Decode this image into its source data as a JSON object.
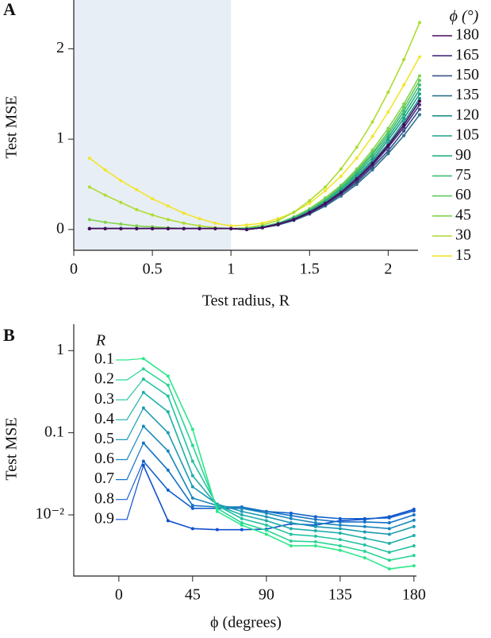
{
  "chart_data": [
    {
      "type": "line",
      "panel": "A",
      "ylabel": "Test MSE",
      "xlabel": "Test radius, R",
      "legend_title": "ϕ (°)",
      "highlight_xlim": [
        0,
        1
      ],
      "xlim": [
        0,
        2.2
      ],
      "ylim": [
        -0.23,
        2.54
      ],
      "xticks": [
        0,
        0.5,
        1,
        1.5,
        2
      ],
      "yticks": [
        0,
        1,
        2
      ],
      "x": [
        0.1,
        0.2,
        0.3,
        0.4,
        0.5,
        0.6,
        0.7,
        0.8,
        0.9,
        1.0,
        1.1,
        1.2,
        1.3,
        1.4,
        1.5,
        1.6,
        1.7,
        1.8,
        1.9,
        2.0,
        2.1,
        2.2
      ],
      "series": [
        {
          "name": "180",
          "color": "#46085c",
          "values": [
            0.01,
            0.01,
            0.01,
            0.01,
            0.01,
            0.01,
            0.01,
            0.01,
            0.01,
            0.01,
            0.0,
            0.02,
            0.06,
            0.11,
            0.19,
            0.29,
            0.41,
            0.56,
            0.73,
            0.93,
            1.16,
            1.42
          ]
        },
        {
          "name": "165",
          "color": "#472d7b",
          "values": [
            0.01,
            0.01,
            0.01,
            0.01,
            0.01,
            0.01,
            0.01,
            0.01,
            0.01,
            0.01,
            0.0,
            0.02,
            0.06,
            0.11,
            0.18,
            0.28,
            0.4,
            0.54,
            0.71,
            0.91,
            1.13,
            1.38
          ]
        },
        {
          "name": "150",
          "color": "#3b528b",
          "values": [
            0.01,
            0.01,
            0.01,
            0.01,
            0.01,
            0.01,
            0.01,
            0.01,
            0.01,
            0.01,
            0.0,
            0.02,
            0.05,
            0.11,
            0.18,
            0.27,
            0.39,
            0.52,
            0.69,
            0.87,
            1.09,
            1.33
          ]
        },
        {
          "name": "135",
          "color": "#2c728e",
          "values": [
            0.01,
            0.01,
            0.01,
            0.01,
            0.01,
            0.01,
            0.01,
            0.01,
            0.01,
            0.01,
            0.0,
            0.02,
            0.05,
            0.1,
            0.17,
            0.26,
            0.37,
            0.5,
            0.66,
            0.84,
            1.04,
            1.27
          ]
        },
        {
          "name": "120",
          "color": "#21918c",
          "values": [
            0.01,
            0.01,
            0.01,
            0.01,
            0.01,
            0.01,
            0.01,
            0.01,
            0.01,
            0.01,
            0.0,
            0.02,
            0.06,
            0.12,
            0.19,
            0.29,
            0.42,
            0.57,
            0.75,
            0.95,
            1.19,
            1.45
          ]
        },
        {
          "name": "105",
          "color": "#1fa088",
          "values": [
            0.01,
            0.01,
            0.01,
            0.01,
            0.01,
            0.01,
            0.01,
            0.01,
            0.01,
            0.01,
            0.0,
            0.02,
            0.06,
            0.12,
            0.2,
            0.3,
            0.43,
            0.59,
            0.77,
            0.99,
            1.23,
            1.5
          ]
        },
        {
          "name": "90",
          "color": "#28ae80",
          "values": [
            0.01,
            0.01,
            0.01,
            0.01,
            0.01,
            0.01,
            0.01,
            0.01,
            0.01,
            0.01,
            0.01,
            0.03,
            0.06,
            0.12,
            0.21,
            0.31,
            0.45,
            0.61,
            0.8,
            1.02,
            1.27,
            1.55
          ]
        },
        {
          "name": "75",
          "color": "#3fbc73",
          "values": [
            0.01,
            0.01,
            0.01,
            0.01,
            0.01,
            0.01,
            0.01,
            0.01,
            0.01,
            0.01,
            0.01,
            0.03,
            0.07,
            0.13,
            0.21,
            0.32,
            0.46,
            0.63,
            0.83,
            1.05,
            1.31,
            1.6
          ]
        },
        {
          "name": "60",
          "color": "#5ec962",
          "values": [
            0.01,
            0.01,
            0.01,
            0.01,
            0.01,
            0.01,
            0.01,
            0.01,
            0.01,
            0.01,
            0.01,
            0.03,
            0.07,
            0.13,
            0.22,
            0.33,
            0.48,
            0.65,
            0.85,
            1.08,
            1.35,
            1.65
          ]
        },
        {
          "name": "45",
          "color": "#84d44b",
          "values": [
            0.11,
            0.08,
            0.06,
            0.04,
            0.03,
            0.02,
            0.01,
            0.01,
            0.01,
            0.01,
            0.01,
            0.03,
            0.07,
            0.14,
            0.23,
            0.35,
            0.49,
            0.67,
            0.88,
            1.12,
            1.39,
            1.7
          ]
        },
        {
          "name": "30",
          "color": "#addc30",
          "values": [
            0.47,
            0.38,
            0.3,
            0.22,
            0.16,
            0.11,
            0.07,
            0.04,
            0.02,
            0.01,
            0.02,
            0.05,
            0.1,
            0.19,
            0.32,
            0.47,
            0.67,
            0.91,
            1.19,
            1.52,
            1.88,
            2.29
          ]
        },
        {
          "name": "15",
          "color": "#f2e52a",
          "values": [
            0.79,
            0.66,
            0.54,
            0.44,
            0.34,
            0.26,
            0.18,
            0.12,
            0.07,
            0.04,
            0.05,
            0.07,
            0.12,
            0.19,
            0.29,
            0.43,
            0.59,
            0.79,
            1.03,
            1.3,
            1.6,
            1.91
          ]
        }
      ]
    },
    {
      "type": "line",
      "panel": "B",
      "ylabel": "Test MSE",
      "xlabel": "ϕ (degrees)",
      "legend_title": "R",
      "log_y": true,
      "xlim": [
        -27.5,
        182.5
      ],
      "ylim": [
        0.0018,
        2.1
      ],
      "xticks": [
        0,
        45,
        90,
        135,
        180
      ],
      "yticks": [
        1,
        0.1,
        {
          "value": 0.01,
          "label": "10⁻²"
        }
      ],
      "x": [
        15,
        30,
        45,
        60,
        75,
        90,
        105,
        120,
        135,
        150,
        165,
        180
      ],
      "series": [
        {
          "name": "0.1",
          "color": "#2de88a",
          "values": [
            0.8,
            0.49,
            0.11,
            0.011,
            0.0075,
            0.0058,
            0.0042,
            0.0042,
            0.0037,
            0.003,
            0.0022,
            0.0024
          ]
        },
        {
          "name": "0.2",
          "color": "#28d595",
          "values": [
            0.6,
            0.38,
            0.07,
            0.012,
            0.008,
            0.0065,
            0.0048,
            0.0047,
            0.0042,
            0.0036,
            0.0028,
            0.0032
          ]
        },
        {
          "name": "0.3",
          "color": "#23c29f",
          "values": [
            0.45,
            0.28,
            0.045,
            0.013,
            0.009,
            0.0075,
            0.0058,
            0.0055,
            0.005,
            0.0043,
            0.0035,
            0.0042
          ]
        },
        {
          "name": "0.4",
          "color": "#1faea9",
          "values": [
            0.31,
            0.18,
            0.03,
            0.013,
            0.01,
            0.0085,
            0.0068,
            0.0064,
            0.006,
            0.0052,
            0.0045,
            0.0056
          ]
        },
        {
          "name": "0.5",
          "color": "#1b9ab3",
          "values": [
            0.2,
            0.1,
            0.022,
            0.0135,
            0.011,
            0.0095,
            0.008,
            0.0072,
            0.0068,
            0.0062,
            0.0058,
            0.0072
          ]
        },
        {
          "name": "0.6",
          "color": "#1886bd",
          "values": [
            0.12,
            0.06,
            0.016,
            0.013,
            0.012,
            0.0105,
            0.009,
            0.008,
            0.0075,
            0.0072,
            0.0068,
            0.0086
          ]
        },
        {
          "name": "0.7",
          "color": "#1572c5",
          "values": [
            0.075,
            0.035,
            0.013,
            0.0125,
            0.0125,
            0.011,
            0.0098,
            0.0088,
            0.0082,
            0.0082,
            0.008,
            0.01
          ]
        },
        {
          "name": "0.8",
          "color": "#1261cb",
          "values": [
            0.045,
            0.02,
            0.012,
            0.012,
            0.012,
            0.011,
            0.0105,
            0.0095,
            0.009,
            0.009,
            0.0092,
            0.0112
          ]
        },
        {
          "name": "0.9",
          "color": "#0f4fd0",
          "values": [
            0.04,
            0.0085,
            0.0068,
            0.0066,
            0.0066,
            0.0067,
            0.0078,
            0.0075,
            0.0085,
            0.0088,
            0.0095,
            0.0117
          ]
        }
      ]
    }
  ]
}
